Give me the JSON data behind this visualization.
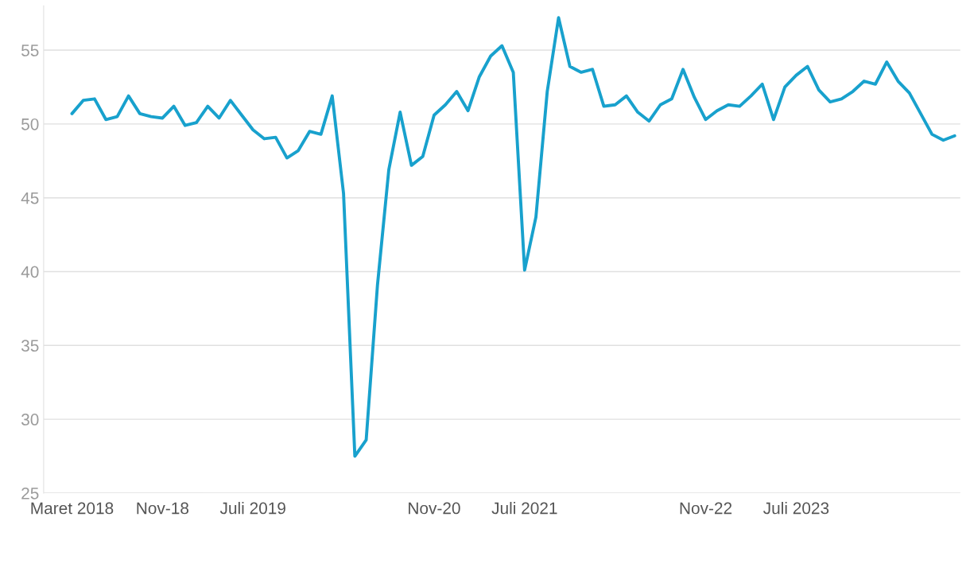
{
  "chart_data": {
    "type": "line",
    "categories": [
      "Maret 2018",
      null,
      null,
      null,
      null,
      null,
      null,
      null,
      "Nov-18",
      null,
      null,
      null,
      null,
      null,
      null,
      null,
      "Juli 2019",
      null,
      null,
      null,
      null,
      null,
      null,
      null,
      null,
      null,
      null,
      null,
      null,
      null,
      null,
      null,
      "Nov-20",
      null,
      null,
      null,
      null,
      null,
      null,
      null,
      "Juli 2021",
      null,
      null,
      null,
      null,
      null,
      null,
      null,
      null,
      null,
      null,
      null,
      null,
      null,
      null,
      null,
      "Nov-22",
      null,
      null,
      null,
      null,
      null,
      null,
      null,
      "Juli 2023",
      null,
      null,
      null,
      null,
      null,
      null,
      null,
      null,
      null,
      null,
      null,
      null,
      null,
      null
    ],
    "series": [
      {
        "color": "#18a1cd",
        "values": [
          50.7,
          51.6,
          51.7,
          50.3,
          50.5,
          51.9,
          50.7,
          50.5,
          50.4,
          51.2,
          49.9,
          50.1,
          51.2,
          50.4,
          51.6,
          50.6,
          49.6,
          49.0,
          49.1,
          47.7,
          48.2,
          49.5,
          49.3,
          51.9,
          45.3,
          27.5,
          28.6,
          39.1,
          46.9,
          50.8,
          47.2,
          47.8,
          50.6,
          51.3,
          52.2,
          50.9,
          53.2,
          54.6,
          55.3,
          53.5,
          40.1,
          43.7,
          52.2,
          57.2,
          53.9,
          53.5,
          53.7,
          51.2,
          51.3,
          51.9,
          50.8,
          50.2,
          51.3,
          51.7,
          53.7,
          51.8,
          50.3,
          50.9,
          51.3,
          51.2,
          51.9,
          52.7,
          50.3,
          52.5,
          53.3,
          53.9,
          52.3,
          51.5,
          51.7,
          52.2,
          52.9,
          52.7,
          54.2,
          52.9,
          52.1,
          50.7,
          49.3,
          48.9,
          49.2
        ]
      }
    ],
    "ylim": [
      25,
      58
    ],
    "yticks": [
      25,
      30,
      35,
      40,
      45,
      50,
      55
    ],
    "grid": "y",
    "marker": "none",
    "line_style": "solid"
  }
}
